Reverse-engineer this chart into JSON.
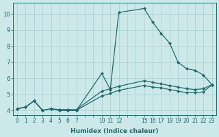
{
  "xlabel": "Humidex (Indice chaleur)",
  "ylabel": "",
  "bg_color": "#cce8e8",
  "grid_color": "#aacece",
  "line_color": "#1a6b6b",
  "xtick_positions": [
    0,
    1,
    2,
    3,
    4,
    5,
    6,
    7,
    10,
    11,
    12,
    15,
    16,
    17,
    18,
    19,
    20,
    21,
    22,
    23
  ],
  "xtick_labels": [
    "0",
    "1",
    "2",
    "3",
    "4",
    "5",
    "6",
    "7",
    "10",
    "11",
    "12",
    "15",
    "16",
    "17",
    "18",
    "19",
    "20",
    "21",
    "22",
    "23"
  ],
  "ytick_positions": [
    4,
    5,
    6,
    7,
    8,
    9,
    10
  ],
  "ytick_labels": [
    "4",
    "5",
    "6",
    "7",
    "8",
    "9",
    "10"
  ],
  "xlim": [
    -0.5,
    23.5
  ],
  "ylim": [
    3.7,
    10.7
  ],
  "lines": [
    {
      "x": [
        0,
        1,
        2,
        3,
        4,
        5,
        6,
        7,
        10,
        11,
        12,
        15,
        16,
        17,
        18,
        19,
        20,
        21,
        22,
        23
      ],
      "y": [
        4.1,
        4.2,
        4.6,
        4.0,
        4.1,
        4.0,
        4.0,
        4.0,
        6.3,
        5.3,
        10.1,
        10.35,
        9.5,
        8.8,
        8.2,
        7.0,
        6.6,
        6.5,
        6.2,
        5.6
      ]
    },
    {
      "x": [
        0,
        1,
        2,
        3,
        4,
        5,
        6,
        7,
        10,
        11,
        12,
        15,
        16,
        17,
        18,
        19,
        20,
        21,
        22,
        23
      ],
      "y": [
        4.1,
        4.2,
        4.6,
        4.0,
        4.1,
        4.05,
        4.05,
        4.05,
        5.2,
        5.35,
        5.5,
        5.85,
        5.75,
        5.65,
        5.55,
        5.45,
        5.35,
        5.3,
        5.35,
        5.6
      ]
    },
    {
      "x": [
        0,
        1,
        2,
        3,
        4,
        5,
        6,
        7,
        10,
        11,
        12,
        15,
        16,
        17,
        18,
        19,
        20,
        21,
        22,
        23
      ],
      "y": [
        4.1,
        4.2,
        4.6,
        4.0,
        4.1,
        4.0,
        4.0,
        4.0,
        4.9,
        5.05,
        5.25,
        5.55,
        5.45,
        5.4,
        5.3,
        5.2,
        5.1,
        5.1,
        5.15,
        5.6
      ]
    }
  ]
}
